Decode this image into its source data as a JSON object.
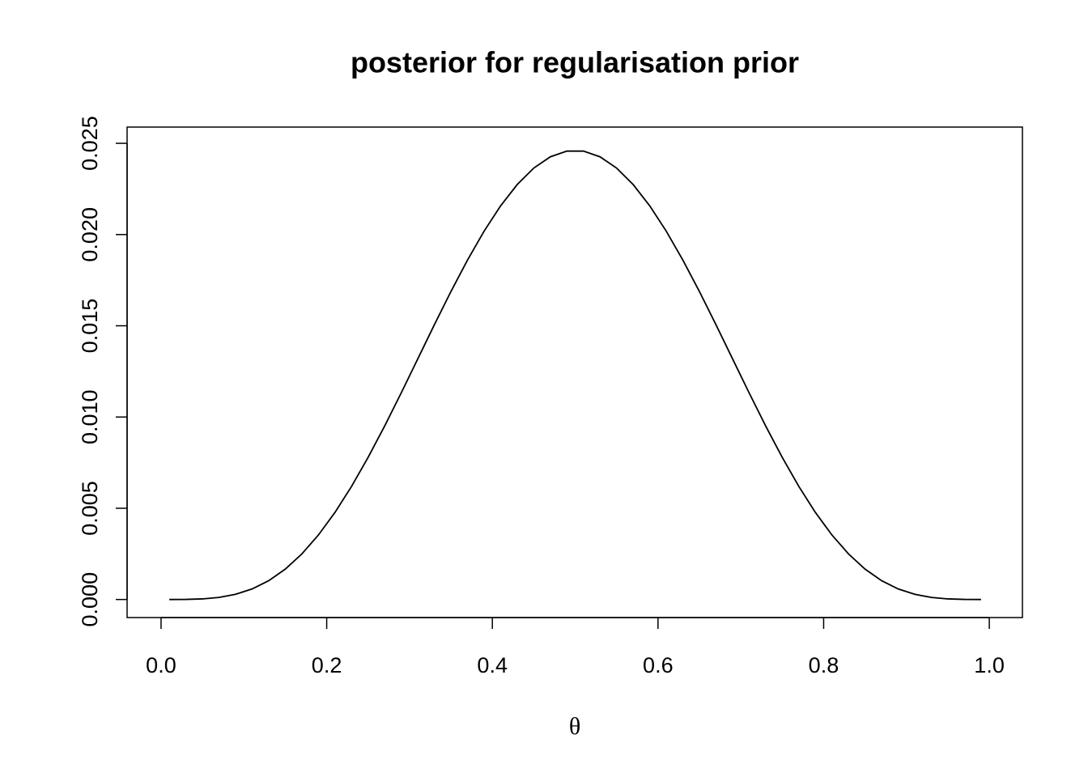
{
  "chart_data": {
    "type": "line",
    "title": "posterior for regularisation prior",
    "xlabel": "θ",
    "color": "#000000",
    "x": [
      0.01,
      0.03,
      0.05,
      0.07,
      0.09,
      0.11,
      0.13,
      0.15,
      0.17,
      0.19,
      0.21,
      0.23,
      0.25,
      0.27,
      0.29,
      0.31,
      0.33,
      0.35,
      0.37,
      0.39,
      0.41,
      0.43,
      0.45,
      0.47,
      0.49,
      0.51,
      0.53,
      0.55,
      0.57,
      0.59,
      0.61,
      0.63,
      0.65,
      0.67,
      0.69,
      0.71,
      0.73,
      0.75,
      0.77,
      0.79,
      0.81,
      0.83,
      0.85,
      0.87,
      0.89,
      0.91,
      0.93,
      0.95,
      0.97,
      0.99
    ],
    "values": [
      0.0,
      4.5e-06,
      3.2e-05,
      0.000113,
      0.000284,
      0.000579,
      0.001031,
      0.001665,
      0.002498,
      0.003535,
      0.004773,
      0.006198,
      0.007788,
      0.009509,
      0.011325,
      0.01319,
      0.015058,
      0.016879,
      0.018603,
      0.020183,
      0.021576,
      0.02274,
      0.023644,
      0.024261,
      0.024574,
      0.024574,
      0.024261,
      0.023644,
      0.02274,
      0.021576,
      0.020183,
      0.018603,
      0.016879,
      0.015058,
      0.01319,
      0.011325,
      0.009509,
      0.007788,
      0.006198,
      0.004773,
      0.003535,
      0.002498,
      0.001665,
      0.001031,
      0.000579,
      0.000284,
      0.000113,
      3.2e-05,
      4.5e-06,
      0.0
    ],
    "xlim": [
      -0.041,
      1.04
    ],
    "ylim": [
      -0.00099,
      0.02589
    ],
    "xticks": [
      {
        "value": 0,
        "label": "0.0"
      },
      0.2,
      0.4,
      0.6,
      0.8,
      {
        "value": 1,
        "label": "1.0"
      }
    ],
    "yticks": [
      {
        "value": 0,
        "label": "0.000"
      },
      {
        "value": 0.005,
        "label": "0.005"
      },
      {
        "value": 0.01,
        "label": "0.010"
      },
      {
        "value": 0.015,
        "label": "0.015"
      },
      {
        "value": 0.02,
        "label": "0.020"
      },
      {
        "value": 0.025,
        "label": "0.025"
      }
    ]
  }
}
